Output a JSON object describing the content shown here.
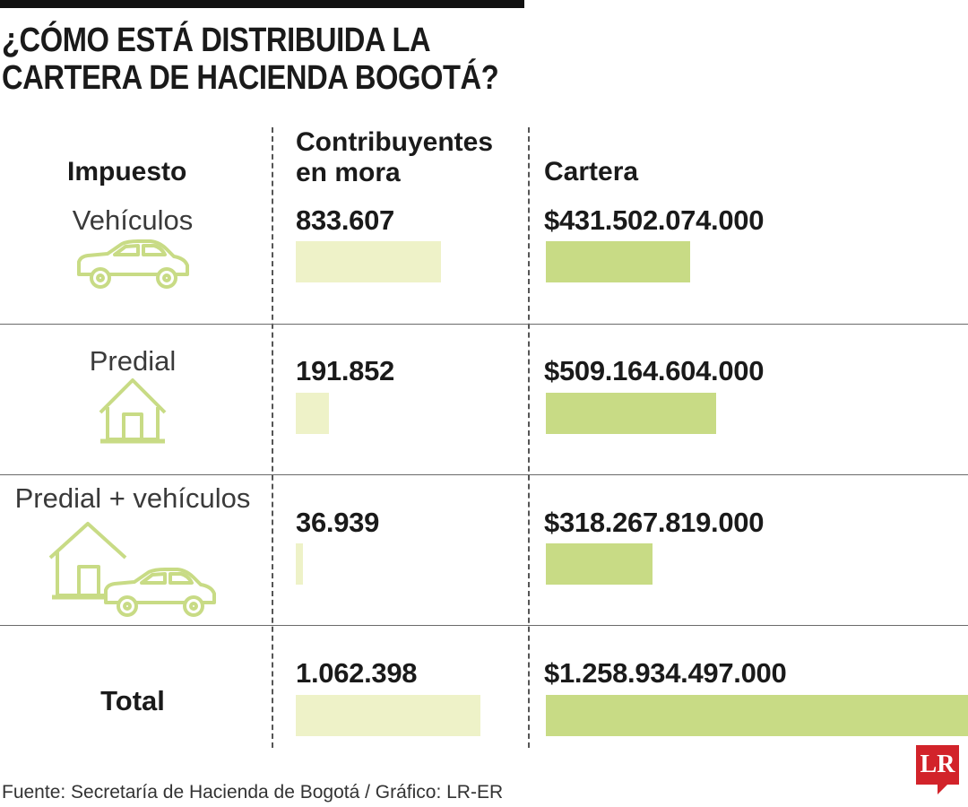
{
  "title": [
    "¿CÓMO ESTÁ DISTRIBUIDA LA",
    "CARTERA DE HACIENDA BOGOTÁ?"
  ],
  "source": "Fuente: Secretaría de Hacienda de Bogotá / Gráfico: LR-ER",
  "logo": "LR",
  "colors": {
    "bar_contribuyentes": "#eef2c8",
    "bar_cartera": "#c8db85",
    "icon": "#c8db85"
  },
  "chart_data": {
    "type": "table",
    "columns": [
      "Impuesto",
      "Contribuyentes en mora",
      "Cartera"
    ],
    "rows": [
      {
        "impuesto": "Vehículos",
        "icon": "car-icon",
        "contribuyentes_label": "833.607",
        "contribuyentes": 833607,
        "cartera_label": "$431.502.074.000",
        "cartera": 431502074000
      },
      {
        "impuesto": "Predial",
        "icon": "house-icon",
        "contribuyentes_label": "191.852",
        "contribuyentes": 191852,
        "cartera_label": "$509.164.604.000",
        "cartera": 509164604000
      },
      {
        "impuesto": "Predial + vehículos",
        "icon": "house-car-icon",
        "contribuyentes_label": "36.939",
        "contribuyentes": 36939,
        "cartera_label": "$318.267.819.000",
        "cartera": 318267819000
      }
    ],
    "total": {
      "label": "Total",
      "contribuyentes_label": "1.062.398",
      "contribuyentes": 1062398,
      "cartera_label": "$1.258.934.497.000",
      "cartera": 1258934497000
    }
  }
}
